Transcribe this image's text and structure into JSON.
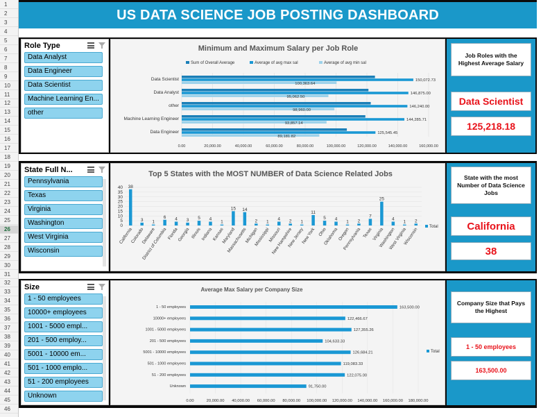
{
  "row_headers": [
    "1",
    "2",
    "3",
    "4",
    "5",
    "6",
    "7",
    "8",
    "9",
    "10",
    "11",
    "12",
    "13",
    "14",
    "15",
    "16",
    "17",
    "18",
    "19",
    "20",
    "21",
    "22",
    "23",
    "24",
    "25",
    "26",
    "27",
    "28",
    "29",
    "30",
    "31",
    "32",
    "33",
    "34",
    "35",
    "36",
    "37",
    "38",
    "39",
    "40",
    "41",
    "42",
    "43",
    "44",
    "45",
    "46"
  ],
  "selected_row": "26",
  "dashboard_title": "US DATA SCIENCE JOB POSTING DASHBOARD",
  "slicers": {
    "role": {
      "title": "Role Type",
      "items": [
        "Data Analyst",
        "Data Engineer",
        "Data Scientist",
        "Machine Learning En...",
        "other"
      ]
    },
    "state": {
      "title": "State Full N...",
      "items": [
        "Pennsylvania",
        "Texas",
        "Virginia",
        "Washington",
        "West Virginia",
        "Wisconsin"
      ]
    },
    "size": {
      "title": "Size",
      "items": [
        "1 - 50 employees",
        "10000+ employees",
        "1001 - 5000 empl...",
        "201 - 500 employ...",
        "5001 - 10000 em...",
        "501 - 1000 emplo...",
        "51 - 200 employees",
        "Unknown"
      ]
    }
  },
  "kpis": {
    "role": {
      "label": "Job Roles with the Highest Average Salary",
      "value": "Data Scientist",
      "amount": "125,218.18"
    },
    "state": {
      "label": "State with the most Number of Data Science Jobs",
      "value": "California",
      "amount": "38"
    },
    "size": {
      "label": "Company Size that Pays the Highest",
      "value": "1 - 50 employees",
      "amount": "163,500.00"
    }
  },
  "colors": {
    "accent": "#1a98c9",
    "bar_dark": "#1b7fb8",
    "bar_mid": "#1a98d4",
    "bar_light": "#9dd2ea",
    "kpi_value": "#e8121a"
  },
  "chart_data": [
    {
      "type": "bar",
      "orientation": "horizontal",
      "title": "Minimum and Maximum Salary per Job Role",
      "categories": [
        "Data Scientist",
        "Data Analyst",
        "other",
        "Machine Learning Engineer",
        "Data Engineer"
      ],
      "series": [
        {
          "name": "Sum of Overall Average",
          "values": [
            125218.18,
            121000,
            122500,
            119000,
            107000
          ]
        },
        {
          "name": "Average of avg max sal",
          "values": [
            150072.73,
            146875.0,
            146240.0,
            144285.71,
            125545.45
          ]
        },
        {
          "name": "Average of avg min sal",
          "values": [
            100363.64,
            95062.5,
            98960.0,
            93857.14,
            89181.82
          ]
        }
      ],
      "data_labels": {
        "max": [
          "150,072.73",
          "146,875.00",
          "146,240.00",
          "144,285.71",
          "125,545.45"
        ],
        "min": [
          "100,363.64",
          "95,062.50",
          "98,960.00",
          "93,857.14",
          "89,181.82"
        ]
      },
      "xlim": [
        0,
        160000
      ],
      "ticks": [
        "0.00",
        "20,000.00",
        "40,000.00",
        "60,000.00",
        "80,000.00",
        "100,000.00",
        "120,000.00",
        "140,000.00",
        "160,000.00"
      ],
      "legend": "top"
    },
    {
      "type": "bar",
      "title": "Top 5 States with the MOST NUMBER of Data Science Related Jobs",
      "categories": [
        "California",
        "Colorado",
        "Delaware",
        "District of Columbia",
        "Florida",
        "Georgia",
        "Illinois",
        "Indiana",
        "Kansas",
        "Maryland",
        "Massachusetts",
        "Michigan",
        "Mississippi",
        "Missouri",
        "New Hampshire",
        "New Jersey",
        "New York",
        "Ohio",
        "Oklahoma",
        "Oregon",
        "Pennsylvania",
        "Texas",
        "Virginia",
        "Washington",
        "West Virginia",
        "Wisconsin"
      ],
      "series": [
        {
          "name": "Total",
          "values": [
            38,
            3,
            1,
            6,
            4,
            3,
            5,
            4,
            1,
            15,
            14,
            2,
            1,
            4,
            2,
            1,
            11,
            5,
            4,
            1,
            2,
            7,
            25,
            4,
            1,
            2
          ]
        }
      ],
      "ylim": [
        0,
        40
      ],
      "ticks": [
        "0",
        "5",
        "10",
        "15",
        "20",
        "25",
        "30",
        "35",
        "40"
      ],
      "legend": "right"
    },
    {
      "type": "bar",
      "orientation": "horizontal",
      "title": "Average Max Salary per Company Size",
      "categories": [
        "1 - 50 employees",
        "10000+ employees",
        "1001 - 5000 employees",
        "201 - 500 employees",
        "5001 - 10000 employees",
        "501 - 1000 employees",
        "51 - 200 employees",
        "Unknown"
      ],
      "series": [
        {
          "name": "Total",
          "values": [
            163500.0,
            122466.67,
            127355.26,
            104633.33,
            126684.21,
            119083.33,
            122075.0,
            91750.0
          ]
        }
      ],
      "data_labels": [
        "163,500.00",
        "122,466.67",
        "127,355.26",
        "104,633.33",
        "126,684.21",
        "119,083.33",
        "122,075.00",
        "91,750.00"
      ],
      "xlim": [
        0,
        180000
      ],
      "ticks": [
        "0.00",
        "20,000.00",
        "40,000.00",
        "60,000.00",
        "80,000.00",
        "100,000.00",
        "120,000.00",
        "140,000.00",
        "160,000.00",
        "180,000.00"
      ],
      "legend": "right"
    }
  ]
}
